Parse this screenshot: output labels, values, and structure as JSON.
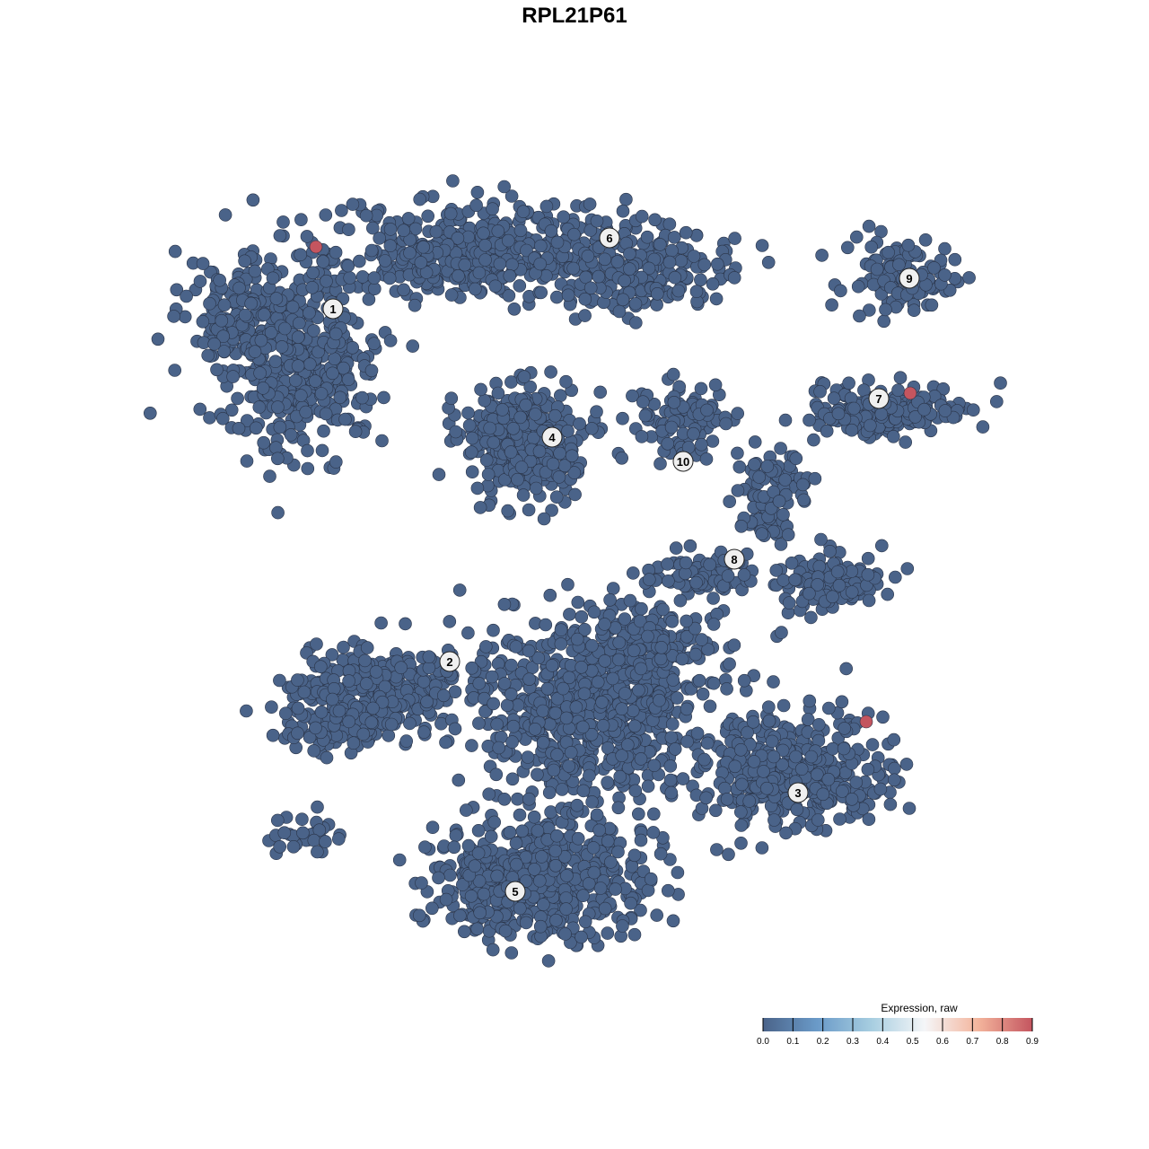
{
  "chart_data": {
    "type": "scatter",
    "title": "RPL21P61",
    "xlabel": "",
    "ylabel": "",
    "grid": false,
    "axes_visible": false,
    "cluster_labels": [
      "1",
      "2",
      "3",
      "4",
      "5",
      "6",
      "7",
      "8",
      "9",
      "10"
    ],
    "point_color_low": "#4a6389",
    "point_color_high": "#c4555f",
    "highlighted_points": [
      {
        "cluster": "1",
        "value": 0.9
      },
      {
        "cluster": "7",
        "value": 0.9
      },
      {
        "cluster": "3",
        "value": 0.9
      }
    ],
    "baseline_value": 0.0,
    "legend": {
      "title": "Expression, raw",
      "placement": "bottom-right",
      "range": [
        0.0,
        0.9
      ],
      "ticks": [
        "0.0",
        "0.1",
        "0.2",
        "0.3",
        "0.4",
        "0.5",
        "0.6",
        "0.7",
        "0.8",
        "0.9"
      ],
      "colors": [
        "#4a6389",
        "#6a9ac8",
        "#a6cde0",
        "#f5f6f8",
        "#f3b49c",
        "#c4555f"
      ]
    }
  }
}
